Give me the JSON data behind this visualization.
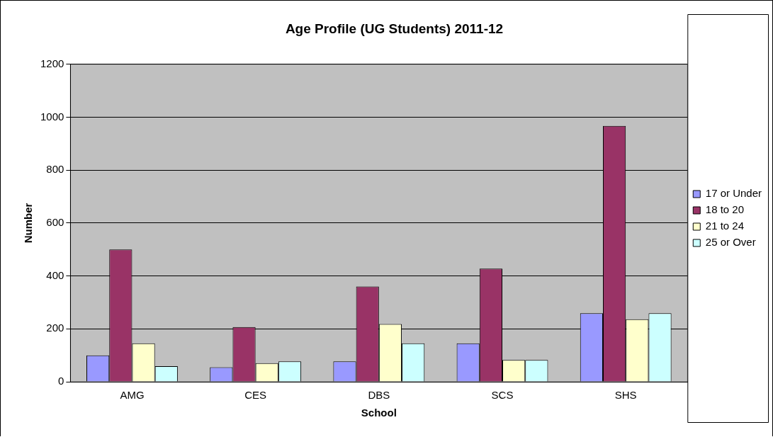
{
  "chart_data": {
    "type": "bar",
    "title": "Age Profile (UG Students) 2011-12",
    "xlabel": "School",
    "ylabel": "Number",
    "categories": [
      "AMG",
      "CES",
      "DBS",
      "SCS",
      "SHS"
    ],
    "series": [
      {
        "name": "17 or Under",
        "color": "#9999ff",
        "values": [
          100,
          55,
          77,
          145,
          259
        ]
      },
      {
        "name": "18 to 20",
        "color": "#993366",
        "values": [
          500,
          207,
          360,
          428,
          967
        ]
      },
      {
        "name": "21 to 24",
        "color": "#ffffcc",
        "values": [
          145,
          70,
          218,
          82,
          236
        ]
      },
      {
        "name": "25 or Over",
        "color": "#ccffff",
        "values": [
          59,
          77,
          145,
          82,
          259
        ]
      }
    ],
    "ylim": [
      0,
      1200
    ],
    "yticks": [
      0,
      200,
      400,
      600,
      800,
      1000,
      1200
    ],
    "grid": "y",
    "legend": "right"
  }
}
